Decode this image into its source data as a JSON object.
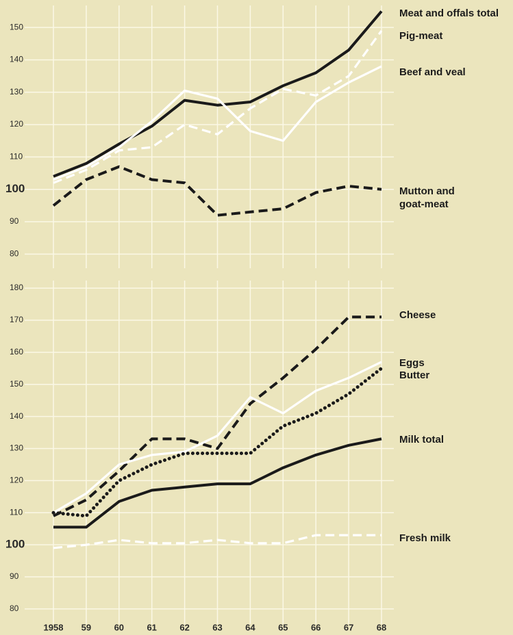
{
  "chart_data": [
    {
      "type": "line",
      "ylim": [
        75,
        157
      ],
      "yticks": [
        80,
        90,
        100,
        110,
        120,
        130,
        140,
        150
      ],
      "grid": true,
      "series": [
        {
          "name": "Meat and offals total",
          "color": "#1a1a1a",
          "line_style": "solid",
          "values": [
            104,
            108,
            114,
            119.5,
            127.5,
            126,
            127,
            132,
            136,
            143,
            155
          ]
        },
        {
          "name": "Pig-meat",
          "color": "#ffffff",
          "line_style": "dashed",
          "values": [
            102,
            106,
            112,
            113,
            120,
            117,
            125,
            131,
            129,
            135,
            149
          ]
        },
        {
          "name": "Beef and veal",
          "color": "#ffffff",
          "line_style": "solid",
          "values": [
            103,
            107,
            113,
            121,
            130.5,
            128,
            118,
            115,
            127,
            133,
            138
          ]
        },
        {
          "name": "Mutton and goat-meat",
          "color": "#1a1a1a",
          "line_style": "dashed",
          "values": [
            95,
            103,
            107,
            103,
            102,
            92,
            93,
            94,
            99,
            101,
            100
          ]
        }
      ]
    },
    {
      "type": "line",
      "categories": [
        "1958",
        "59",
        "60",
        "61",
        "62",
        "63",
        "64",
        "65",
        "66",
        "67",
        "68"
      ],
      "ylim": [
        77,
        183
      ],
      "yticks": [
        80,
        90,
        100,
        110,
        120,
        130,
        140,
        150,
        160,
        170,
        180
      ],
      "grid": true,
      "series": [
        {
          "name": "Cheese",
          "color": "#1a1a1a",
          "line_style": "dashed",
          "values": [
            109,
            114,
            123,
            133,
            133,
            130,
            144,
            152,
            161,
            171,
            171
          ]
        },
        {
          "name": "Eggs",
          "color": "#ffffff",
          "line_style": "solid",
          "values": [
            110,
            116,
            125,
            128,
            129,
            134,
            146,
            141,
            148,
            152,
            157
          ]
        },
        {
          "name": "Butter",
          "color": "#1a1a1a",
          "line_style": "dotted",
          "values": [
            110,
            109,
            120,
            125,
            128.5,
            128.5,
            128.5,
            137,
            141,
            147,
            155
          ]
        },
        {
          "name": "Milk total",
          "color": "#1a1a1a",
          "line_style": "solid",
          "values": [
            105.5,
            105.5,
            113.5,
            117,
            118,
            119,
            119,
            124,
            128,
            131,
            133
          ]
        },
        {
          "name": "Fresh milk",
          "color": "#ffffff",
          "line_style": "dashed",
          "values": [
            99,
            100,
            101.5,
            100.5,
            100.5,
            101.5,
            100.5,
            100.5,
            103,
            103,
            103
          ]
        }
      ]
    }
  ]
}
